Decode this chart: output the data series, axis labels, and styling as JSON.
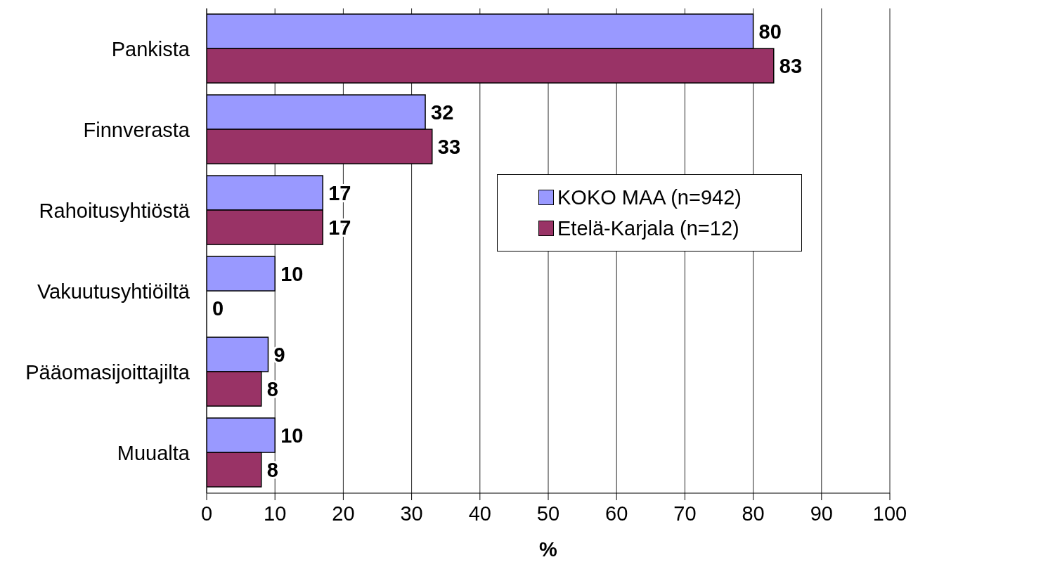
{
  "chart_data": {
    "type": "bar",
    "orientation": "horizontal",
    "categories": [
      "Pankista",
      "Finnverasta",
      "Rahoitusyhtiöstä",
      "Vakuutusyhtiöiltä",
      "Pääomasijoittajilta",
      "Muualta"
    ],
    "series": [
      {
        "name": "KOKO MAA (n=942)",
        "color": "#9999ff",
        "values": [
          80,
          32,
          17,
          10,
          9,
          10
        ]
      },
      {
        "name": "Etelä-Karjala (n=12)",
        "color": "#993366",
        "values": [
          83,
          33,
          17,
          0,
          8,
          8
        ]
      }
    ],
    "xlabel": "%",
    "xlim": [
      0,
      100
    ],
    "xticks": [
      0,
      10,
      20,
      30,
      40,
      50,
      60,
      70,
      80,
      90,
      100
    ],
    "grid": "x",
    "legend": "right",
    "data_labels": true
  }
}
